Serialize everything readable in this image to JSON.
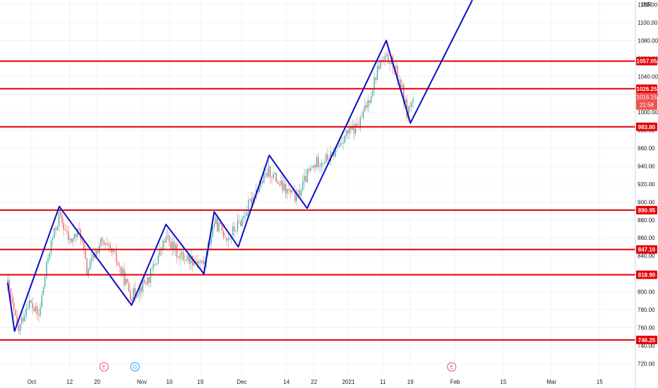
{
  "currency_label": "INR",
  "colors": {
    "level_line": "#e50000",
    "zigzag": "#0d0dc8",
    "up_candle": "#26a69a",
    "down_candle": "#ef5350",
    "grid": "#f0f3fa",
    "earnings_event": "#e0556b",
    "dividend_event": "#2196f3"
  },
  "chart_data": {
    "type": "candlestick",
    "ylim": [
      710,
      1122
    ],
    "y_ticks": [
      720,
      740,
      760,
      780,
      800,
      820,
      840,
      860,
      880,
      900,
      920,
      940,
      960,
      980,
      1000,
      1020,
      1040,
      1060,
      1080,
      1100,
      1120
    ],
    "y_tick_labels": [
      "720.00",
      "740.00",
      "760.00",
      "780.00",
      "800.00",
      "820.00",
      "840.00",
      "860.00",
      "880.00",
      "900.00",
      "920.00",
      "940.00",
      "960.00",
      "980.00",
      "1000.00",
      "1020.00",
      "1040.00",
      "1060.00",
      "1080.00",
      "1100.00",
      "1120.00"
    ],
    "x_ticks": [
      {
        "label": "Oct",
        "date": "2020-10-01"
      },
      {
        "label": "12",
        "date": "2020-10-12"
      },
      {
        "label": "20",
        "date": "2020-10-20"
      },
      {
        "label": "Nov",
        "date": "2020-11-02"
      },
      {
        "label": "10",
        "date": "2020-11-10"
      },
      {
        "label": "19",
        "date": "2020-11-19"
      },
      {
        "label": "Dec",
        "date": "2020-12-01"
      },
      {
        "label": "14",
        "date": "2020-12-14"
      },
      {
        "label": "22",
        "date": "2020-12-22"
      },
      {
        "label": "2021",
        "date": "2021-01-01"
      },
      {
        "label": "11",
        "date": "2021-01-11"
      },
      {
        "label": "19",
        "date": "2021-01-19"
      },
      {
        "label": "Feb",
        "date": "2021-02-01"
      },
      {
        "label": "15",
        "date": "2021-02-15"
      },
      {
        "label": "Mar",
        "date": "2021-03-01"
      },
      {
        "label": "15",
        "date": "2021-03-15"
      }
    ],
    "levels": [
      {
        "value": 1057.05,
        "label": "1057.05"
      },
      {
        "value": 1026.25,
        "label": "1026.25"
      },
      {
        "value": 983.8,
        "label": "983.80"
      },
      {
        "value": 890.95,
        "label": "890.95"
      },
      {
        "value": 847.1,
        "label": "847.10"
      },
      {
        "value": 818.9,
        "label": "818.90"
      },
      {
        "value": 746.25,
        "label": "746.25"
      }
    ],
    "current_price": {
      "value": 1016.15,
      "label": "1016.15",
      "countdown": "21:58"
    },
    "zigzag": [
      {
        "date": "2020-09-24",
        "price": 810
      },
      {
        "date": "2020-09-26",
        "price": 756
      },
      {
        "date": "2020-10-09",
        "price": 895
      },
      {
        "date": "2020-10-30",
        "price": 785
      },
      {
        "date": "2020-11-09",
        "price": 875
      },
      {
        "date": "2020-11-20",
        "price": 820
      },
      {
        "date": "2020-11-23",
        "price": 889
      },
      {
        "date": "2020-11-30",
        "price": 850
      },
      {
        "date": "2020-12-09",
        "price": 952
      },
      {
        "date": "2020-12-20",
        "price": 893
      },
      {
        "date": "2021-01-12",
        "price": 1080
      },
      {
        "date": "2021-01-19",
        "price": 988
      },
      {
        "date": "2021-02-06",
        "price": 1125
      }
    ],
    "candles_path": [
      {
        "date": "2020-09-24",
        "price": 808
      },
      {
        "date": "2020-09-27",
        "price": 755
      },
      {
        "date": "2020-09-30",
        "price": 790
      },
      {
        "date": "2020-10-03",
        "price": 772
      },
      {
        "date": "2020-10-06",
        "price": 845
      },
      {
        "date": "2020-10-09",
        "price": 885
      },
      {
        "date": "2020-10-12",
        "price": 855
      },
      {
        "date": "2020-10-15",
        "price": 868
      },
      {
        "date": "2020-10-17",
        "price": 822
      },
      {
        "date": "2020-10-21",
        "price": 855
      },
      {
        "date": "2020-10-25",
        "price": 840
      },
      {
        "date": "2020-10-30",
        "price": 795
      },
      {
        "date": "2020-11-04",
        "price": 815
      },
      {
        "date": "2020-11-09",
        "price": 860
      },
      {
        "date": "2020-11-13",
        "price": 840
      },
      {
        "date": "2020-11-18",
        "price": 835
      },
      {
        "date": "2020-11-20",
        "price": 830
      },
      {
        "date": "2020-11-23",
        "price": 878
      },
      {
        "date": "2020-11-27",
        "price": 860
      },
      {
        "date": "2020-12-01",
        "price": 880
      },
      {
        "date": "2020-12-05",
        "price": 912
      },
      {
        "date": "2020-12-09",
        "price": 935
      },
      {
        "date": "2020-12-13",
        "price": 915
      },
      {
        "date": "2020-12-17",
        "price": 905
      },
      {
        "date": "2020-12-20",
        "price": 930
      },
      {
        "date": "2020-12-23",
        "price": 945
      },
      {
        "date": "2020-12-27",
        "price": 950
      },
      {
        "date": "2020-12-31",
        "price": 975
      },
      {
        "date": "2021-01-04",
        "price": 985
      },
      {
        "date": "2021-01-07",
        "price": 1015
      },
      {
        "date": "2021-01-10",
        "price": 1055
      },
      {
        "date": "2021-01-13",
        "price": 1060
      },
      {
        "date": "2021-01-16",
        "price": 1035
      },
      {
        "date": "2021-01-18",
        "price": 1000
      },
      {
        "date": "2021-01-20",
        "price": 1016
      }
    ],
    "events": [
      {
        "date": "2020-10-22",
        "letter": "E",
        "kind": "earnings"
      },
      {
        "date": "2020-10-31",
        "letter": "D",
        "kind": "dividend"
      },
      {
        "date": "2021-01-31",
        "letter": "E",
        "kind": "earnings"
      }
    ]
  }
}
